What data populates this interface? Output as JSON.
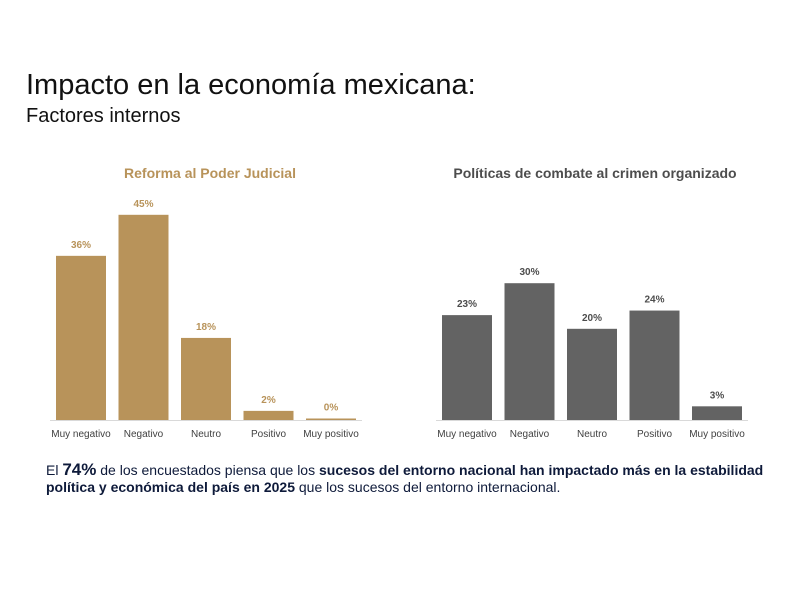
{
  "header": {
    "title": "Impacto en la economía mexicana:",
    "subtitle": "Factores internos"
  },
  "colors": {
    "gold": "#b8935a",
    "gray": "#636363",
    "gold_label": "#b8935a",
    "gray_label": "#4d4d4d",
    "axis_label": "#404040",
    "footer_text": "#0e1a3a"
  },
  "chart_data": [
    {
      "type": "bar",
      "title": "Reforma al Poder Judicial",
      "categories": [
        "Muy negativo",
        "Negativo",
        "Neutro",
        "Positivo",
        "Muy positivo"
      ],
      "values": [
        36,
        45,
        18,
        2,
        0
      ],
      "labels": [
        "36%",
        "45%",
        "18%",
        "2%",
        "0%"
      ],
      "unit": "%",
      "xlabel": "",
      "ylabel": "",
      "ylim": [
        0,
        50
      ],
      "grid": false,
      "legend": "none",
      "color": "#b8935a"
    },
    {
      "type": "bar",
      "title": "Políticas de combate al crimen organizado",
      "categories": [
        "Muy negativo",
        "Negativo",
        "Neutro",
        "Positivo",
        "Muy positivo"
      ],
      "values": [
        23,
        30,
        20,
        24,
        3
      ],
      "labels": [
        "23%",
        "30%",
        "20%",
        "24%",
        "3%"
      ],
      "unit": "%",
      "xlabel": "",
      "ylabel": "",
      "ylim": [
        0,
        50
      ],
      "grid": false,
      "legend": "none",
      "color": "#636363"
    }
  ],
  "footer": {
    "p1": "El ",
    "p2": "74%",
    "p3": " de los encuestados piensa que los ",
    "p4": "sucesos del entorno nacional han impactado más en la estabilidad política y económica del país en 2025",
    "p5": " que los sucesos del entorno internacional."
  }
}
